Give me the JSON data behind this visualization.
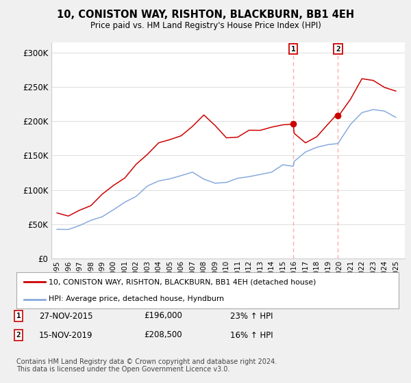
{
  "title": "10, CONISTON WAY, RISHTON, BLACKBURN, BB1 4EH",
  "subtitle": "Price paid vs. HM Land Registry's House Price Index (HPI)",
  "ylabel_ticks": [
    "£0",
    "£50K",
    "£100K",
    "£150K",
    "£200K",
    "£250K",
    "£300K"
  ],
  "ytick_values": [
    0,
    50000,
    100000,
    150000,
    200000,
    250000,
    300000
  ],
  "ylim": [
    0,
    315000
  ],
  "sale1_date": "27-NOV-2015",
  "sale1_price": 196000,
  "sale1_hpi": "23% ↑ HPI",
  "sale2_date": "15-NOV-2019",
  "sale2_price": 208500,
  "sale2_hpi": "16% ↑ HPI",
  "legend_line1": "10, CONISTON WAY, RISHTON, BLACKBURN, BB1 4EH (detached house)",
  "legend_line2": "HPI: Average price, detached house, Hyndburn",
  "footnote": "Contains HM Land Registry data © Crown copyright and database right 2024.\nThis data is licensed under the Open Government Licence v3.0.",
  "price_line_color": "#cc0000",
  "hpi_line_color": "#88aadd",
  "sale_marker_color": "#cc0000",
  "vline_color": "#ffaaaa",
  "background_color": "#f0f0f0",
  "plot_bg_color": "#ffffff",
  "years": [
    1995,
    1996,
    1997,
    1998,
    1999,
    2000,
    2001,
    2002,
    2003,
    2004,
    2005,
    2006,
    2007,
    2008,
    2009,
    2010,
    2011,
    2012,
    2013,
    2014,
    2015,
    2015.92,
    2016,
    2017,
    2018,
    2019,
    2019.88,
    2020,
    2021,
    2022,
    2023,
    2024,
    2025
  ],
  "hpi_vals": [
    40000,
    43000,
    48000,
    55000,
    62000,
    71000,
    82000,
    93000,
    104000,
    112000,
    117000,
    121000,
    125000,
    116000,
    110000,
    113000,
    116000,
    119000,
    122000,
    128000,
    134000,
    134000,
    142000,
    152000,
    162000,
    168000,
    168000,
    174000,
    194000,
    213000,
    218000,
    213000,
    208000
  ],
  "price_vals": [
    65000,
    67000,
    72000,
    80000,
    90000,
    102000,
    118000,
    135000,
    152000,
    167000,
    175000,
    183000,
    197000,
    208000,
    188000,
    175000,
    178000,
    182000,
    186000,
    191000,
    194000,
    196000,
    183000,
    172000,
    176000,
    196000,
    208500,
    210000,
    237000,
    262000,
    255000,
    250000,
    246000
  ]
}
